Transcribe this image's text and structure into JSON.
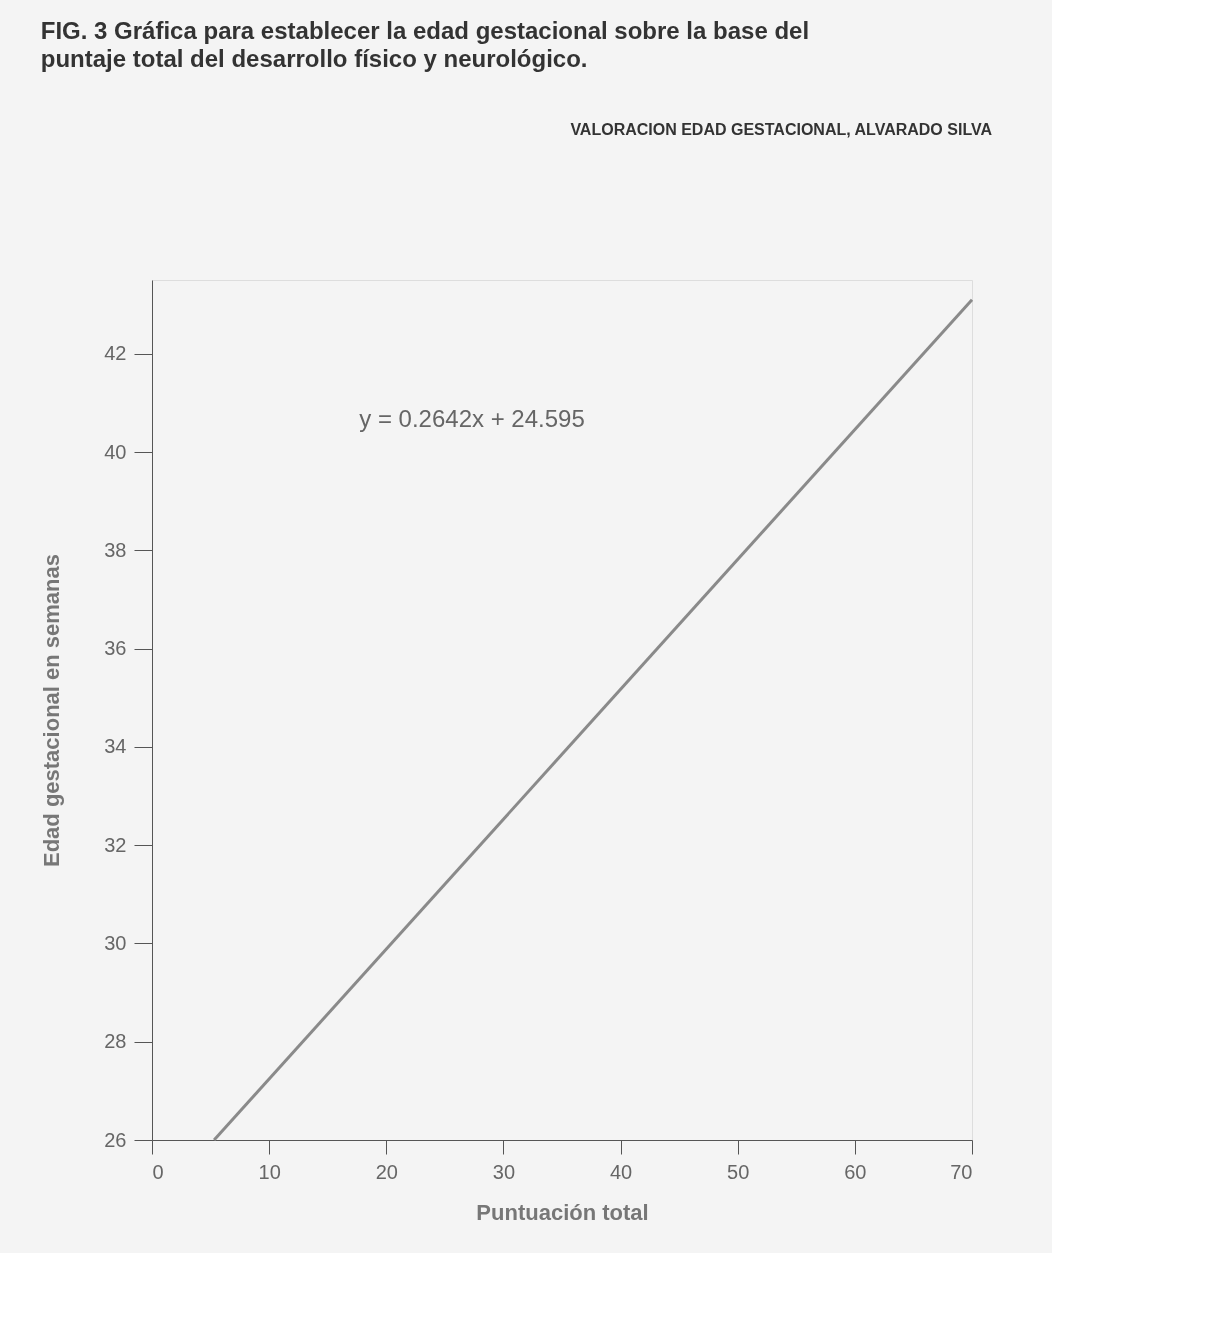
{
  "chart_data": {
    "type": "line",
    "title": "FIG. 3 Gráfica para establecer la edad gestacional sobre la base del puntaje total del desarrollo físico y neurológico.",
    "xlabel": "Puntuación total",
    "ylabel": "Edad gestacional en semanas",
    "annotations": [
      "VALORACION EDAD GESTACIONAL, ALVARADO SILVA",
      "y = 0.2642x + 24.595"
    ],
    "series": [
      {
        "color": "#8a8a8a",
        "x": [
          5.3,
          70
        ],
        "values": [
          26.0,
          43.1
        ]
      }
    ],
    "xlim": [
      0,
      70
    ],
    "xticks": [
      0,
      10,
      20,
      30,
      40,
      50,
      60,
      70
    ],
    "ylim": [
      26,
      43.5
    ],
    "yticks": [
      26,
      28,
      30,
      32,
      34,
      36,
      38,
      40,
      42
    ],
    "grid": false,
    "marker": "none",
    "line_style": "solid"
  }
}
